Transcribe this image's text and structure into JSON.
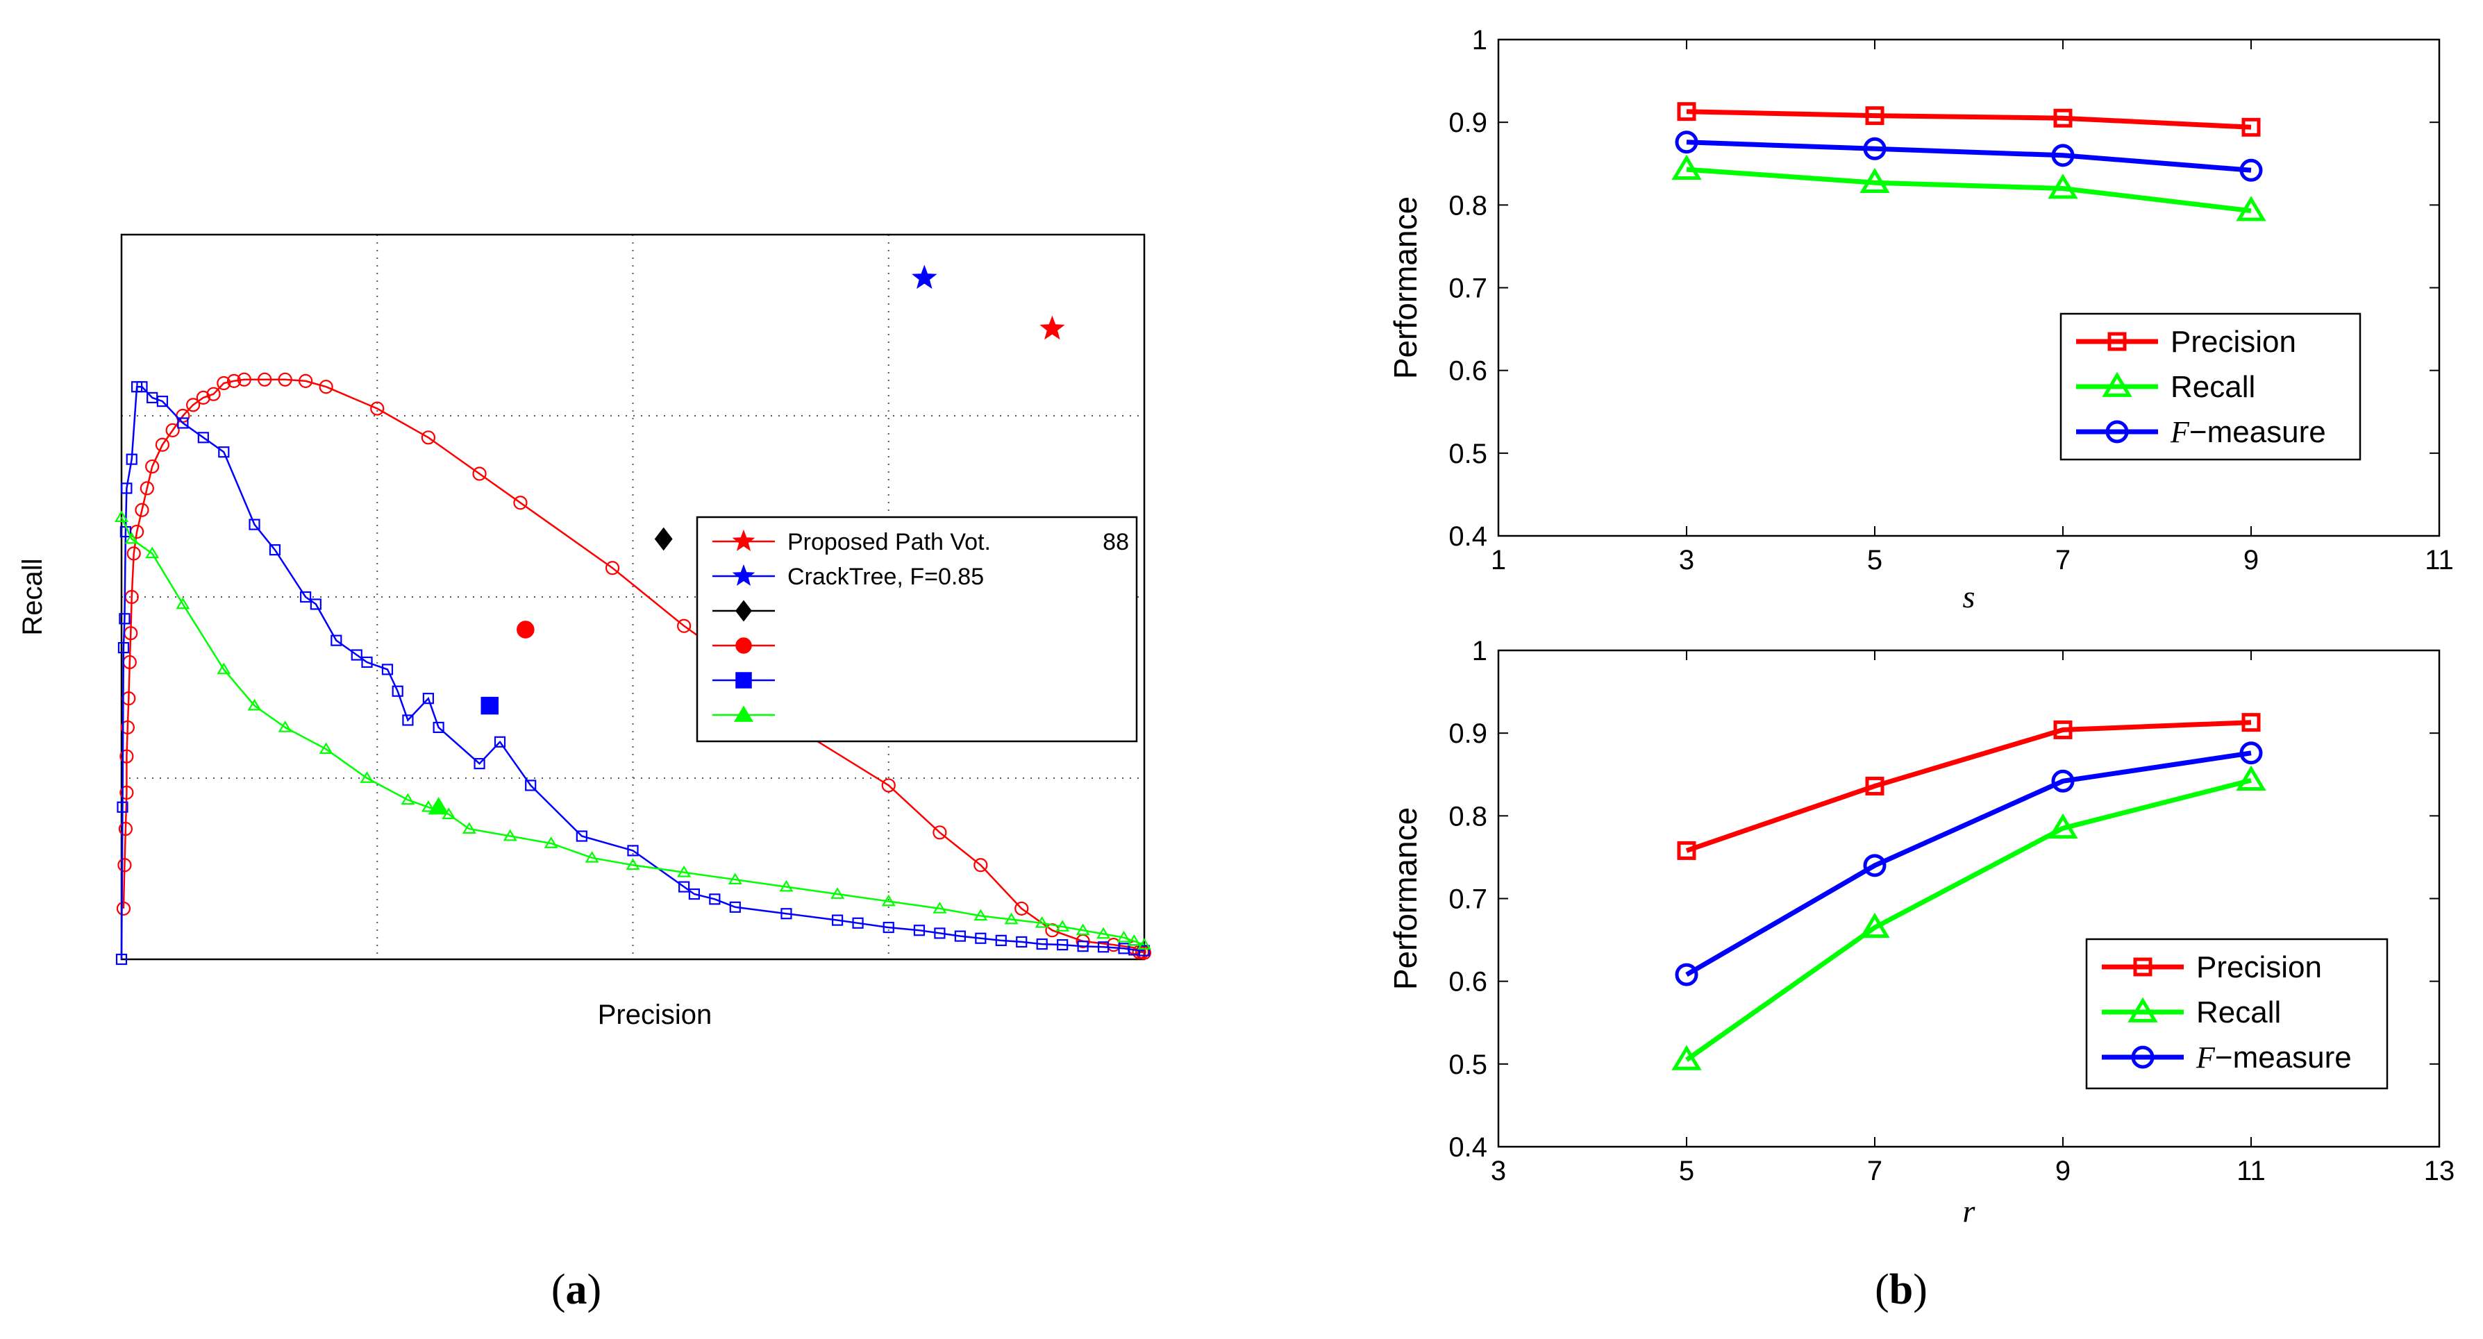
{
  "chart_data": [
    {
      "type": "line",
      "panel": "a",
      "panel_label": "a",
      "xlabel": "Precision",
      "ylabel": "Recall",
      "xlim": [
        0,
        1
      ],
      "ylim": [
        0,
        1
      ],
      "ticks_shown": false,
      "grid": true,
      "legend": {
        "placement": "center-right",
        "entries": [
          {
            "label": "Proposed Path Vot.",
            "suffix": "88",
            "color": "#ff0000",
            "marker": "star"
          },
          {
            "label": "CrackTree, F=0.85",
            "suffix": "",
            "color": "#0000ff",
            "marker": "star"
          },
          {
            "label": "",
            "suffix": "",
            "color": "#000000",
            "marker": "diamond"
          },
          {
            "label": "",
            "suffix": "",
            "color": "#ff0000",
            "marker": "circle"
          },
          {
            "label": "",
            "suffix": "",
            "color": "#0000ff",
            "marker": "square"
          },
          {
            "label": "",
            "suffix": "",
            "color": "#00ff00",
            "marker": "triangle"
          }
        ]
      },
      "series": [
        {
          "name": "red curve",
          "color": "#ff0000",
          "marker": "circle",
          "x": [
            0.002,
            0.003,
            0.004,
            0.005,
            0.005,
            0.006,
            0.007,
            0.008,
            0.009,
            0.01,
            0.012,
            0.015,
            0.02,
            0.025,
            0.03,
            0.04,
            0.05,
            0.06,
            0.07,
            0.08,
            0.09,
            0.1,
            0.11,
            0.12,
            0.14,
            0.16,
            0.18,
            0.2,
            0.25,
            0.3,
            0.35,
            0.39,
            0.48,
            0.55,
            0.6,
            0.67,
            0.75,
            0.8,
            0.84,
            0.88,
            0.91,
            0.94,
            0.97,
            0.99,
            0.995,
            0.998,
            1.0
          ],
          "y": [
            0.07,
            0.13,
            0.18,
            0.23,
            0.28,
            0.32,
            0.36,
            0.41,
            0.45,
            0.5,
            0.56,
            0.59,
            0.62,
            0.65,
            0.68,
            0.71,
            0.73,
            0.75,
            0.765,
            0.775,
            0.78,
            0.795,
            0.798,
            0.8,
            0.8,
            0.8,
            0.798,
            0.79,
            0.76,
            0.72,
            0.67,
            0.63,
            0.54,
            0.46,
            0.41,
            0.31,
            0.24,
            0.175,
            0.13,
            0.07,
            0.04,
            0.025,
            0.02,
            0.016,
            0.01,
            0.01,
            0.009
          ]
        },
        {
          "name": "blue curve",
          "color": "#0000ff",
          "marker": "square",
          "x": [
            0.0,
            0.001,
            0.002,
            0.003,
            0.004,
            0.005,
            0.01,
            0.015,
            0.02,
            0.03,
            0.04,
            0.06,
            0.08,
            0.1,
            0.13,
            0.15,
            0.18,
            0.19,
            0.21,
            0.23,
            0.24,
            0.26,
            0.27,
            0.28,
            0.3,
            0.31,
            0.35,
            0.37,
            0.4,
            0.45,
            0.5,
            0.55,
            0.56,
            0.58,
            0.6,
            0.65,
            0.7,
            0.72,
            0.75,
            0.78,
            0.8,
            0.82,
            0.84,
            0.86,
            0.88,
            0.9,
            0.92,
            0.94,
            0.96,
            0.98,
            0.99,
            1.0
          ],
          "y": [
            0.0,
            0.21,
            0.43,
            0.47,
            0.59,
            0.65,
            0.69,
            0.79,
            0.79,
            0.775,
            0.77,
            0.74,
            0.72,
            0.7,
            0.6,
            0.565,
            0.5,
            0.49,
            0.44,
            0.42,
            0.41,
            0.4,
            0.37,
            0.33,
            0.36,
            0.32,
            0.27,
            0.3,
            0.24,
            0.17,
            0.15,
            0.1,
            0.09,
            0.083,
            0.072,
            0.063,
            0.054,
            0.05,
            0.044,
            0.04,
            0.036,
            0.032,
            0.029,
            0.026,
            0.024,
            0.021,
            0.02,
            0.018,
            0.017,
            0.015,
            0.013,
            0.012
          ]
        },
        {
          "name": "green curve",
          "color": "#00ff00",
          "marker": "triangle",
          "x": [
            0.0,
            0.01,
            0.03,
            0.06,
            0.1,
            0.13,
            0.16,
            0.2,
            0.24,
            0.28,
            0.3,
            0.32,
            0.34,
            0.38,
            0.42,
            0.46,
            0.5,
            0.55,
            0.6,
            0.65,
            0.7,
            0.75,
            0.8,
            0.84,
            0.87,
            0.9,
            0.92,
            0.94,
            0.96,
            0.98,
            0.99,
            1.0
          ],
          "y": [
            0.61,
            0.58,
            0.56,
            0.49,
            0.4,
            0.35,
            0.32,
            0.29,
            0.25,
            0.22,
            0.21,
            0.2,
            0.18,
            0.17,
            0.16,
            0.14,
            0.13,
            0.12,
            0.11,
            0.1,
            0.09,
            0.08,
            0.07,
            0.06,
            0.055,
            0.05,
            0.045,
            0.04,
            0.035,
            0.03,
            0.025,
            0.02
          ]
        }
      ],
      "operating_points": [
        {
          "name": "Proposed Path Vot.",
          "color": "#ff0000",
          "marker": "star",
          "x": 0.91,
          "y": 0.87
        },
        {
          "name": "CrackTree",
          "color": "#0000ff",
          "marker": "star",
          "x": 0.785,
          "y": 0.94
        },
        {
          "name": "black diamond",
          "color": "#000000",
          "marker": "diamond",
          "x": 0.53,
          "y": 0.58
        },
        {
          "name": "red filled circle",
          "color": "#ff0000",
          "marker": "circle",
          "x": 0.395,
          "y": 0.455
        },
        {
          "name": "blue filled square",
          "color": "#0000ff",
          "marker": "square",
          "x": 0.36,
          "y": 0.35
        },
        {
          "name": "green filled triangle",
          "color": "#00ff00",
          "marker": "triangle",
          "x": 0.31,
          "y": 0.21
        }
      ]
    },
    {
      "type": "line",
      "panel": "b-top",
      "xlabel": "s",
      "ylabel": "Performance",
      "xlim": [
        1,
        11
      ],
      "ylim": [
        0.4,
        1
      ],
      "xticks": [
        1,
        3,
        5,
        7,
        9,
        11
      ],
      "yticks": [
        0.4,
        0.5,
        0.6,
        0.7,
        0.8,
        0.9,
        1
      ],
      "grid": false,
      "categories": [
        3,
        5,
        7,
        9
      ],
      "legend": {
        "placement": "lower-right"
      },
      "series": [
        {
          "name": "Precision",
          "color": "#ff0000",
          "marker": "square",
          "values": [
            0.913,
            0.908,
            0.905,
            0.894
          ]
        },
        {
          "name": "Recall",
          "color": "#00ff00",
          "marker": "triangle",
          "values": [
            0.843,
            0.827,
            0.82,
            0.793
          ]
        },
        {
          "name": "F-measure",
          "name_italic": "F",
          "name_rest": "−measure",
          "color": "#0000ff",
          "marker": "circle",
          "values": [
            0.876,
            0.868,
            0.86,
            0.842
          ]
        }
      ]
    },
    {
      "type": "line",
      "panel": "b-bottom",
      "xlabel": "r",
      "ylabel": "Performance",
      "xlim": [
        3,
        13
      ],
      "ylim": [
        0.4,
        1
      ],
      "xticks": [
        3,
        5,
        7,
        9,
        11,
        13
      ],
      "yticks": [
        0.4,
        0.5,
        0.6,
        0.7,
        0.8,
        0.9,
        1
      ],
      "grid": false,
      "categories": [
        5,
        7,
        9,
        11
      ],
      "legend": {
        "placement": "lower-right"
      },
      "series": [
        {
          "name": "Precision",
          "color": "#ff0000",
          "marker": "square",
          "values": [
            0.758,
            0.836,
            0.904,
            0.913
          ]
        },
        {
          "name": "Recall",
          "color": "#00ff00",
          "marker": "triangle",
          "values": [
            0.505,
            0.665,
            0.785,
            0.843
          ]
        },
        {
          "name": "F-measure",
          "name_italic": "F",
          "name_rest": "−measure",
          "color": "#0000ff",
          "marker": "circle",
          "values": [
            0.608,
            0.74,
            0.842,
            0.876
          ]
        }
      ]
    }
  ],
  "captions": {
    "a": "a",
    "b": "b"
  }
}
